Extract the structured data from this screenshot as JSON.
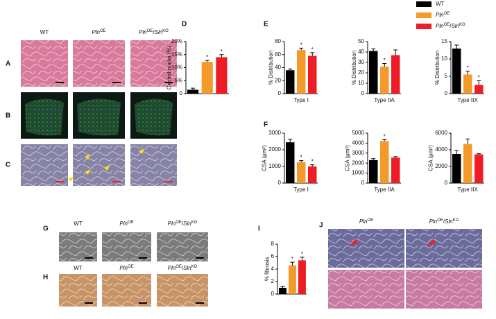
{
  "legend": [
    {
      "name": [
        {
          "text": "WT",
          "style": "normal"
        }
      ],
      "color": "#000000"
    },
    {
      "name": [
        {
          "text": "Pln",
          "style": "italic"
        },
        {
          "text": "OE",
          "style": "sup"
        }
      ],
      "color": "#f39a2b"
    },
    {
      "name": [
        {
          "text": "Pln",
          "style": "italic"
        },
        {
          "text": "OE",
          "style": "sup"
        },
        {
          "text": "/",
          "style": "normal"
        },
        {
          "text": "Sln",
          "style": "italic"
        },
        {
          "text": "KO",
          "style": "sup"
        }
      ],
      "color": "#ee1c24"
    }
  ],
  "panel_letters": [
    "A",
    "B",
    "C",
    "D",
    "E",
    "F",
    "G",
    "H",
    "I",
    "J"
  ],
  "micrograph_columns": {
    "ABC": [
      [
        {
          "text": "WT",
          "style": "normal"
        }
      ],
      [
        {
          "text": "Pln",
          "style": "italic"
        },
        {
          "text": "OE",
          "style": "sup"
        }
      ],
      [
        {
          "text": "Pln",
          "style": "italic"
        },
        {
          "text": "OE",
          "style": "sup"
        },
        {
          "text": "/",
          "style": "normal"
        },
        {
          "text": "Sln",
          "style": "italic"
        },
        {
          "text": "KO",
          "style": "sup"
        }
      ]
    ],
    "G": [
      [
        {
          "text": "WT",
          "style": "normal"
        }
      ],
      [
        {
          "text": "Pln",
          "style": "italic"
        },
        {
          "text": "OE",
          "style": "sup"
        }
      ],
      [
        {
          "text": "Pln",
          "style": "italic"
        },
        {
          "text": "OE",
          "style": "sup"
        },
        {
          "text": "/",
          "style": "normal"
        },
        {
          "text": "Sln",
          "style": "italic"
        },
        {
          "text": "KO",
          "style": "sup"
        }
      ]
    ],
    "H": [
      [
        {
          "text": "WT",
          "style": "normal"
        }
      ],
      [
        {
          "text": "Pln",
          "style": "italic"
        },
        {
          "text": "OE",
          "style": "sup"
        }
      ],
      [
        {
          "text": "Pln",
          "style": "italic"
        },
        {
          "text": "OE",
          "style": "sup"
        },
        {
          "text": "/",
          "style": "normal"
        },
        {
          "text": "Sln",
          "style": "italic"
        },
        {
          "text": "KO",
          "style": "sup"
        }
      ]
    ],
    "J": [
      [
        {
          "text": "Pln",
          "style": "italic"
        },
        {
          "text": "OE",
          "style": "sup"
        }
      ],
      [
        {
          "text": "Pln",
          "style": "italic"
        },
        {
          "text": "OE",
          "style": "sup"
        },
        {
          "text": "/",
          "style": "normal"
        },
        {
          "text": "Sln",
          "style": "italic"
        },
        {
          "text": "KO",
          "style": "sup"
        }
      ]
    ]
  },
  "chart_data": [
    {
      "type": "bar",
      "ylabel": "Central nuclei (%)",
      "xlabel": null,
      "ylim": [
        0,
        20
      ],
      "yticks": [
        0,
        {
          "value": 5,
          "label": "5%"
        },
        {
          "value": 10,
          "label": "10%"
        },
        {
          "value": 15,
          "label": "15%"
        },
        {
          "value": 20,
          "label": "20%"
        }
      ],
      "values": [
        1.5,
        12.2,
        14
      ],
      "errors": [
        0.6,
        0.6,
        1.0
      ],
      "stars": [
        null,
        "*",
        "*"
      ]
    },
    {
      "type": "bar",
      "ylabel": "% Distribution",
      "xlabel": "Type I",
      "ylim": [
        0,
        80
      ],
      "yticks": [
        0,
        20,
        40,
        60,
        80
      ],
      "values": [
        36,
        67,
        58
      ],
      "errors": [
        2,
        3,
        5
      ],
      "stars": [
        null,
        "*",
        "*"
      ]
    },
    {
      "type": "bar",
      "ylabel": "% Distribution",
      "xlabel": "Type IIA",
      "ylim": [
        0,
        50
      ],
      "yticks": [
        0,
        10,
        20,
        30,
        40,
        50
      ],
      "values": [
        41,
        26,
        37
      ],
      "errors": [
        2,
        3,
        5
      ],
      "stars": [
        null,
        "*",
        null
      ]
    },
    {
      "type": "bar",
      "ylabel": "% Distribution",
      "xlabel": "Type IIX",
      "ylim": [
        0,
        15
      ],
      "yticks": [
        0,
        5,
        10,
        15
      ],
      "values": [
        13,
        5.5,
        2.5
      ],
      "errors": [
        1,
        1,
        1.2
      ],
      "stars": [
        null,
        "*",
        "*"
      ]
    },
    {
      "type": "bar",
      "ylabel": "CSA (μm²)",
      "xlabel": "Type I",
      "ylim": [
        0,
        3000
      ],
      "yticks": [
        0,
        1000,
        2000,
        3000
      ],
      "values": [
        2450,
        1250,
        1000
      ],
      "errors": [
        180,
        100,
        100
      ],
      "stars": [
        null,
        "*",
        "*"
      ]
    },
    {
      "type": "bar",
      "ylabel": "CSA (μm²)",
      "xlabel": "Type IIA",
      "ylim": [
        0,
        5000
      ],
      "yticks": [
        0,
        1000,
        2000,
        3000,
        4000,
        5000
      ],
      "values": [
        2300,
        4200,
        2550
      ],
      "errors": [
        150,
        150,
        100
      ],
      "stars": [
        null,
        "*",
        null
      ]
    },
    {
      "type": "bar",
      "ylabel": "CSA (μm²)",
      "xlabel": "Type IIX",
      "ylim": [
        0,
        6000
      ],
      "yticks": [
        0,
        2000,
        4000,
        6000
      ],
      "values": [
        3500,
        4700,
        3450
      ],
      "errors": [
        400,
        600,
        80
      ],
      "stars": [
        null,
        null,
        null
      ]
    },
    {
      "type": "bar",
      "ylabel": "% fibrosis",
      "xlabel": null,
      "ylim": [
        0,
        8
      ],
      "yticks": [
        0,
        2,
        4,
        6,
        8
      ],
      "values": [
        1,
        4.6,
        5.4
      ],
      "errors": [
        0.2,
        0.5,
        0.5
      ],
      "stars": [
        null,
        "*",
        "*"
      ]
    }
  ]
}
